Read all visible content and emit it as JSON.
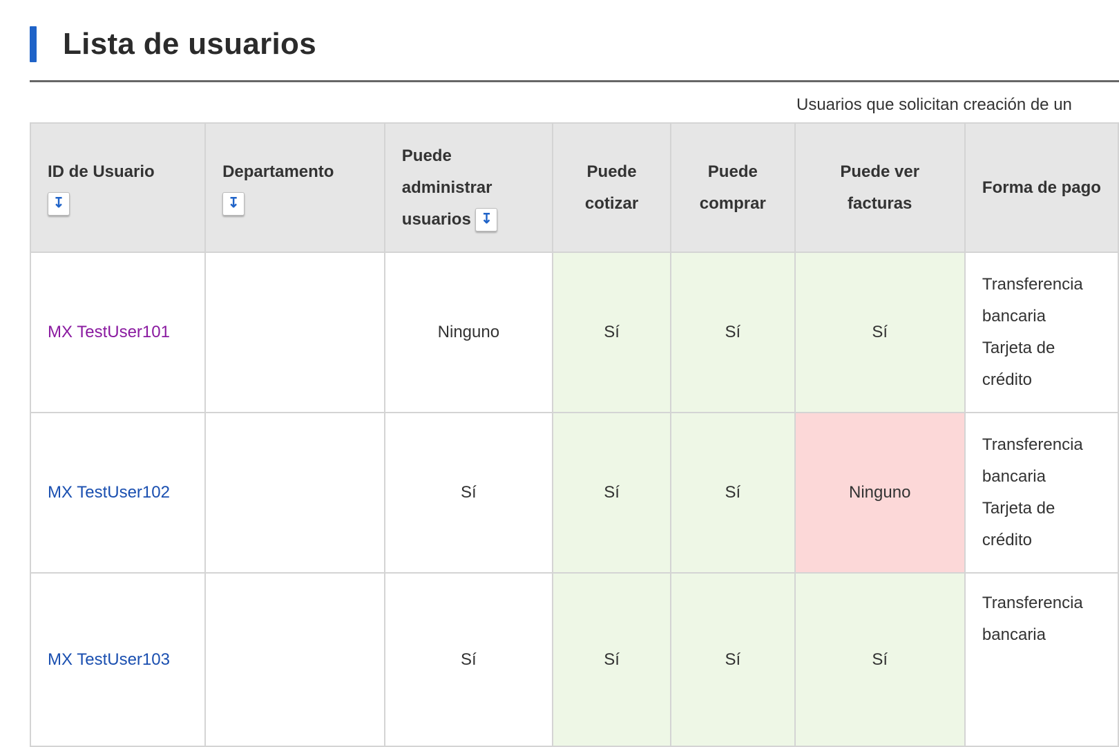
{
  "page": {
    "title": "Lista de usuarios",
    "note": "Usuarios que solicitan creación de un"
  },
  "columns": [
    "ID de Usuario",
    "Departamento",
    "Puede administrar usuarios",
    "Puede cotizar",
    "Puede comprar",
    "Puede ver facturas",
    "Forma de pago"
  ],
  "sort_icon": "double-chevron-down-icon",
  "colors": {
    "accent": "#1f63c8",
    "yes_bg": "#eef7e6",
    "no_bg": "#fcd8d8",
    "visited_link": "#8a1aa0",
    "link": "#1a4fb0"
  },
  "rows": [
    {
      "id": "MX TestUser101",
      "department": "",
      "admin": "Ninguno",
      "quote": "Sí",
      "buy": "Sí",
      "invoices": "Sí",
      "payment": [
        "Transferencia",
        "bancaria",
        "Tarjeta de",
        "crédito"
      ]
    },
    {
      "id": "MX TestUser102",
      "department": "",
      "admin": "Sí",
      "quote": "Sí",
      "buy": "Sí",
      "invoices": "Ninguno",
      "payment": [
        "Transferencia",
        "bancaria",
        "Tarjeta de",
        "crédito"
      ]
    },
    {
      "id": "MX TestUser103",
      "department": "",
      "admin": "Sí",
      "quote": "Sí",
      "buy": "Sí",
      "invoices": "Sí",
      "payment": [
        "Transferencia",
        "bancaria"
      ]
    }
  ]
}
